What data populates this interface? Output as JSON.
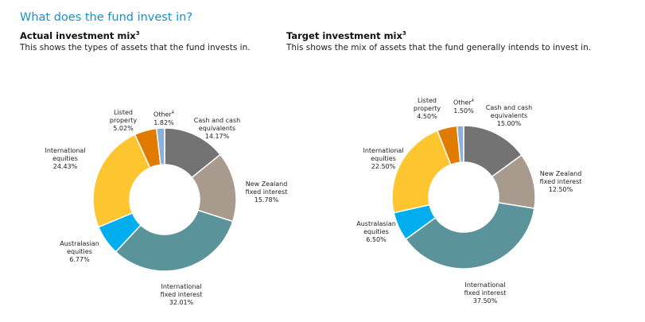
{
  "heading": "What does the fund invest in?",
  "footnote_marks": {
    "mix": "3",
    "other": "4"
  },
  "chart_data": [
    {
      "type": "pie",
      "donut": true,
      "title": "Actual investment mix",
      "subtitle": "This shows the types of assets that the fund invests in.",
      "slices": [
        {
          "label": [
            "Cash and cash",
            "equivalents"
          ],
          "value": 14.17,
          "value_text": "14.17%",
          "color": "#737373"
        },
        {
          "label": [
            "New Zealand",
            "fixed interest"
          ],
          "value": 15.78,
          "value_text": "15.78%",
          "color": "#a89b8e"
        },
        {
          "label": [
            "International",
            "fixed interest"
          ],
          "value": 32.01,
          "value_text": "32.01%",
          "color": "#5a9399"
        },
        {
          "label": [
            "Australasian",
            "equities"
          ],
          "value": 6.77,
          "value_text": "6.77%",
          "color": "#00aeef"
        },
        {
          "label": [
            "International",
            "equities"
          ],
          "value": 24.43,
          "value_text": "24.43%",
          "color": "#fdc52f"
        },
        {
          "label": [
            "Listed",
            "property"
          ],
          "value": 5.02,
          "value_text": "5.02%",
          "color": "#e07b00"
        },
        {
          "label": [
            "Other"
          ],
          "value": 1.82,
          "value_text": "1.82%",
          "color": "#8fb0d6"
        }
      ]
    },
    {
      "type": "pie",
      "donut": true,
      "title": "Target investment mix",
      "subtitle": "This shows the mix of assets that the fund generally intends to invest in.",
      "slices": [
        {
          "label": [
            "Cash and cash",
            "equivalents"
          ],
          "value": 15.0,
          "value_text": "15.00%",
          "color": "#737373"
        },
        {
          "label": [
            "New Zealand",
            "fixed interest"
          ],
          "value": 12.5,
          "value_text": "12.50%",
          "color": "#a89b8e"
        },
        {
          "label": [
            "International",
            "fixed interest"
          ],
          "value": 37.5,
          "value_text": "37.50%",
          "color": "#5a9399"
        },
        {
          "label": [
            "Australasian",
            "equities"
          ],
          "value": 6.5,
          "value_text": "6.50%",
          "color": "#00aeef"
        },
        {
          "label": [
            "International",
            "equities"
          ],
          "value": 22.5,
          "value_text": "22.50%",
          "color": "#fdc52f"
        },
        {
          "label": [
            "Listed",
            "property"
          ],
          "value": 4.5,
          "value_text": "4.50%",
          "color": "#e07b00"
        },
        {
          "label": [
            "Other"
          ],
          "value": 1.5,
          "value_text": "1.50%",
          "color": "#8fb0d6"
        }
      ]
    }
  ]
}
